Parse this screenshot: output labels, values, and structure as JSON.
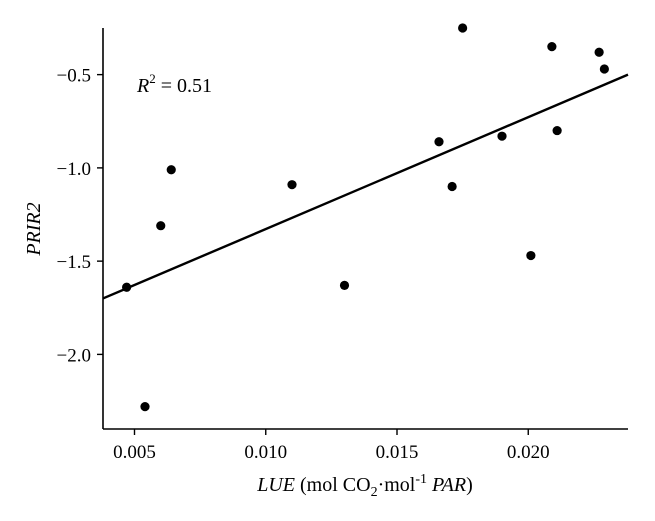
{
  "chart_data": {
    "type": "scatter",
    "title": "",
    "xlabel": {
      "parts": [
        "LUE",
        " (mol CO",
        "2",
        "·mol",
        "-1",
        " ",
        "PAR",
        ")"
      ]
    },
    "ylabel": "PRIR2",
    "xlim": [
      0.0038,
      0.0238
    ],
    "ylim": [
      -2.4,
      -0.25
    ],
    "xticks": [
      0.005,
      0.01,
      0.015,
      0.02
    ],
    "xtick_labels": [
      "0.005",
      "0.010",
      "0.015",
      "0.020"
    ],
    "yticks": [
      -0.5,
      -1.0,
      -1.5,
      -2.0
    ],
    "ytick_labels": [
      "−0.5",
      "−1.0",
      "−1.5",
      "−2.0"
    ],
    "grid": false,
    "annotation": {
      "r2_symbol": "R",
      "r2_sup": "2",
      "r2_rest": " = 0.51"
    },
    "points": [
      {
        "x": 0.0047,
        "y": -1.64
      },
      {
        "x": 0.0054,
        "y": -2.28
      },
      {
        "x": 0.006,
        "y": -1.31
      },
      {
        "x": 0.0064,
        "y": -1.01
      },
      {
        "x": 0.011,
        "y": -1.09
      },
      {
        "x": 0.013,
        "y": -1.63
      },
      {
        "x": 0.0166,
        "y": -0.86
      },
      {
        "x": 0.0171,
        "y": -1.1
      },
      {
        "x": 0.0175,
        "y": -0.25
      },
      {
        "x": 0.019,
        "y": -0.83
      },
      {
        "x": 0.0201,
        "y": -1.47
      },
      {
        "x": 0.0209,
        "y": -0.35
      },
      {
        "x": 0.0211,
        "y": -0.8
      },
      {
        "x": 0.0227,
        "y": -0.38
      },
      {
        "x": 0.0229,
        "y": -0.47
      }
    ],
    "fit_line": [
      {
        "x": 0.0038,
        "y": -1.7
      },
      {
        "x": 0.0238,
        "y": -0.5
      }
    ]
  }
}
